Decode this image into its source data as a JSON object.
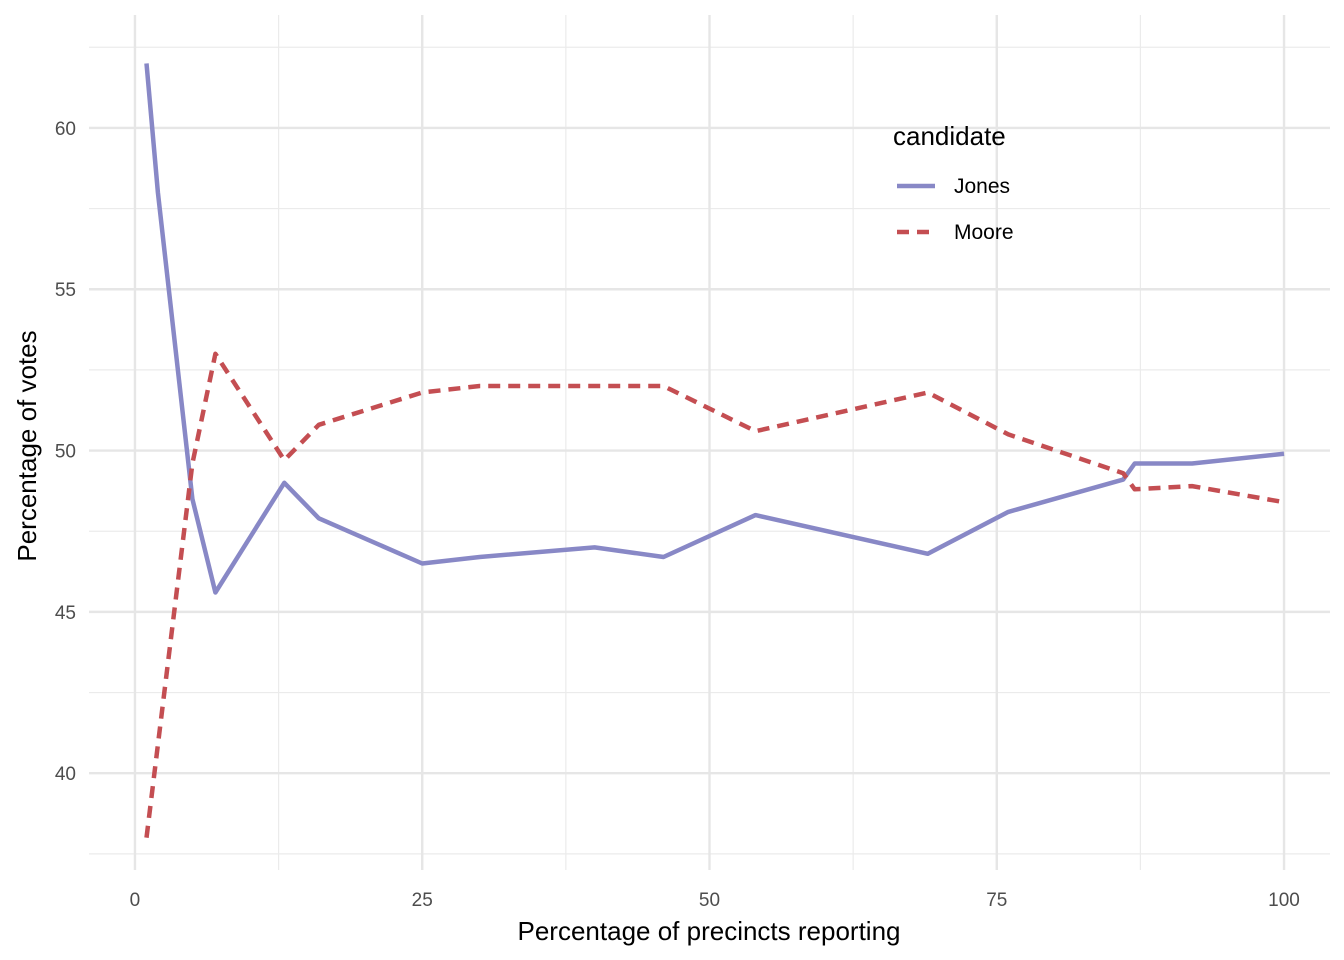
{
  "chart_data": {
    "type": "line",
    "title": "",
    "xlabel": "Percentage of precincts reporting",
    "ylabel": "Percentage of votes",
    "xlim": [
      -4,
      104
    ],
    "ylim": [
      37,
      63.5
    ],
    "x_ticks": [
      0,
      25,
      50,
      75,
      100
    ],
    "x_tick_labels": [
      "0",
      "25",
      "50",
      "75",
      "100"
    ],
    "x_minor_ticks": [
      12.5,
      37.5,
      62.5,
      87.5
    ],
    "y_ticks": [
      40,
      45,
      50,
      55,
      60
    ],
    "y_tick_labels": [
      "40",
      "45",
      "50",
      "55",
      "60"
    ],
    "y_minor_ticks": [
      37.5,
      42.5,
      47.5,
      52.5,
      57.5,
      62.5
    ],
    "grid": true,
    "legend": {
      "title": "candidate",
      "position": "top-right"
    },
    "series": [
      {
        "name": "Jones",
        "color": "#8888c6",
        "dash": "solid",
        "x": [
          1,
          2,
          5,
          7,
          13,
          16,
          25,
          30,
          40,
          46,
          54,
          69,
          76,
          86,
          87,
          92,
          100
        ],
        "y": [
          62,
          58,
          48.5,
          45.6,
          49.0,
          47.9,
          46.5,
          46.7,
          47.0,
          46.7,
          48.0,
          46.8,
          48.1,
          49.1,
          49.6,
          49.6,
          49.9
        ]
      },
      {
        "name": "Moore",
        "color": "#c44e52",
        "dash": "dashed",
        "x": [
          1,
          5,
          7,
          13,
          16,
          25,
          30,
          40,
          46,
          54,
          69,
          76,
          86,
          87,
          92,
          100
        ],
        "y": [
          38,
          49.6,
          53.0,
          49.7,
          50.8,
          51.8,
          52.0,
          52.0,
          52.0,
          50.6,
          51.8,
          50.5,
          49.3,
          48.8,
          48.9,
          48.4
        ]
      }
    ]
  }
}
